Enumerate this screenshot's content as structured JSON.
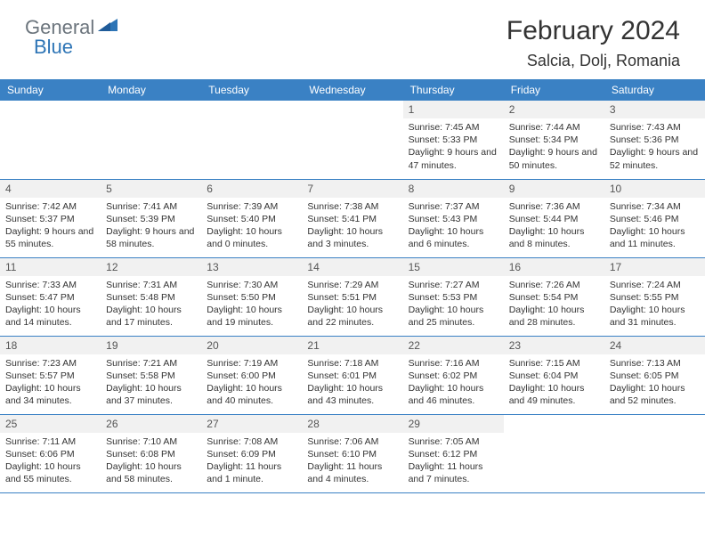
{
  "brand": {
    "word1": "General",
    "word2": "Blue"
  },
  "title": "February 2024",
  "location": "Salcia, Dolj, Romania",
  "colors": {
    "header_bg": "#3a81c4",
    "header_text": "#ffffff",
    "daynum_bg": "#f1f1f1",
    "border": "#3a81c4",
    "brand_gray": "#6c757d",
    "brand_blue": "#2e75b6"
  },
  "typography": {
    "title_fontsize": 30,
    "location_fontsize": 18,
    "dayheader_fontsize": 12,
    "body_fontsize": 10.5
  },
  "day_headers": [
    "Sunday",
    "Monday",
    "Tuesday",
    "Wednesday",
    "Thursday",
    "Friday",
    "Saturday"
  ],
  "weeks": [
    [
      null,
      null,
      null,
      null,
      {
        "n": "1",
        "sunrise": "7:45 AM",
        "sunset": "5:33 PM",
        "daylight": "9 hours and 47 minutes."
      },
      {
        "n": "2",
        "sunrise": "7:44 AM",
        "sunset": "5:34 PM",
        "daylight": "9 hours and 50 minutes."
      },
      {
        "n": "3",
        "sunrise": "7:43 AM",
        "sunset": "5:36 PM",
        "daylight": "9 hours and 52 minutes."
      }
    ],
    [
      {
        "n": "4",
        "sunrise": "7:42 AM",
        "sunset": "5:37 PM",
        "daylight": "9 hours and 55 minutes."
      },
      {
        "n": "5",
        "sunrise": "7:41 AM",
        "sunset": "5:39 PM",
        "daylight": "9 hours and 58 minutes."
      },
      {
        "n": "6",
        "sunrise": "7:39 AM",
        "sunset": "5:40 PM",
        "daylight": "10 hours and 0 minutes."
      },
      {
        "n": "7",
        "sunrise": "7:38 AM",
        "sunset": "5:41 PM",
        "daylight": "10 hours and 3 minutes."
      },
      {
        "n": "8",
        "sunrise": "7:37 AM",
        "sunset": "5:43 PM",
        "daylight": "10 hours and 6 minutes."
      },
      {
        "n": "9",
        "sunrise": "7:36 AM",
        "sunset": "5:44 PM",
        "daylight": "10 hours and 8 minutes."
      },
      {
        "n": "10",
        "sunrise": "7:34 AM",
        "sunset": "5:46 PM",
        "daylight": "10 hours and 11 minutes."
      }
    ],
    [
      {
        "n": "11",
        "sunrise": "7:33 AM",
        "sunset": "5:47 PM",
        "daylight": "10 hours and 14 minutes."
      },
      {
        "n": "12",
        "sunrise": "7:31 AM",
        "sunset": "5:48 PM",
        "daylight": "10 hours and 17 minutes."
      },
      {
        "n": "13",
        "sunrise": "7:30 AM",
        "sunset": "5:50 PM",
        "daylight": "10 hours and 19 minutes."
      },
      {
        "n": "14",
        "sunrise": "7:29 AM",
        "sunset": "5:51 PM",
        "daylight": "10 hours and 22 minutes."
      },
      {
        "n": "15",
        "sunrise": "7:27 AM",
        "sunset": "5:53 PM",
        "daylight": "10 hours and 25 minutes."
      },
      {
        "n": "16",
        "sunrise": "7:26 AM",
        "sunset": "5:54 PM",
        "daylight": "10 hours and 28 minutes."
      },
      {
        "n": "17",
        "sunrise": "7:24 AM",
        "sunset": "5:55 PM",
        "daylight": "10 hours and 31 minutes."
      }
    ],
    [
      {
        "n": "18",
        "sunrise": "7:23 AM",
        "sunset": "5:57 PM",
        "daylight": "10 hours and 34 minutes."
      },
      {
        "n": "19",
        "sunrise": "7:21 AM",
        "sunset": "5:58 PM",
        "daylight": "10 hours and 37 minutes."
      },
      {
        "n": "20",
        "sunrise": "7:19 AM",
        "sunset": "6:00 PM",
        "daylight": "10 hours and 40 minutes."
      },
      {
        "n": "21",
        "sunrise": "7:18 AM",
        "sunset": "6:01 PM",
        "daylight": "10 hours and 43 minutes."
      },
      {
        "n": "22",
        "sunrise": "7:16 AM",
        "sunset": "6:02 PM",
        "daylight": "10 hours and 46 minutes."
      },
      {
        "n": "23",
        "sunrise": "7:15 AM",
        "sunset": "6:04 PM",
        "daylight": "10 hours and 49 minutes."
      },
      {
        "n": "24",
        "sunrise": "7:13 AM",
        "sunset": "6:05 PM",
        "daylight": "10 hours and 52 minutes."
      }
    ],
    [
      {
        "n": "25",
        "sunrise": "7:11 AM",
        "sunset": "6:06 PM",
        "daylight": "10 hours and 55 minutes."
      },
      {
        "n": "26",
        "sunrise": "7:10 AM",
        "sunset": "6:08 PM",
        "daylight": "10 hours and 58 minutes."
      },
      {
        "n": "27",
        "sunrise": "7:08 AM",
        "sunset": "6:09 PM",
        "daylight": "11 hours and 1 minute."
      },
      {
        "n": "28",
        "sunrise": "7:06 AM",
        "sunset": "6:10 PM",
        "daylight": "11 hours and 4 minutes."
      },
      {
        "n": "29",
        "sunrise": "7:05 AM",
        "sunset": "6:12 PM",
        "daylight": "11 hours and 7 minutes."
      },
      null,
      null
    ]
  ],
  "labels": {
    "sunrise": "Sunrise:",
    "sunset": "Sunset:",
    "daylight": "Daylight:"
  }
}
